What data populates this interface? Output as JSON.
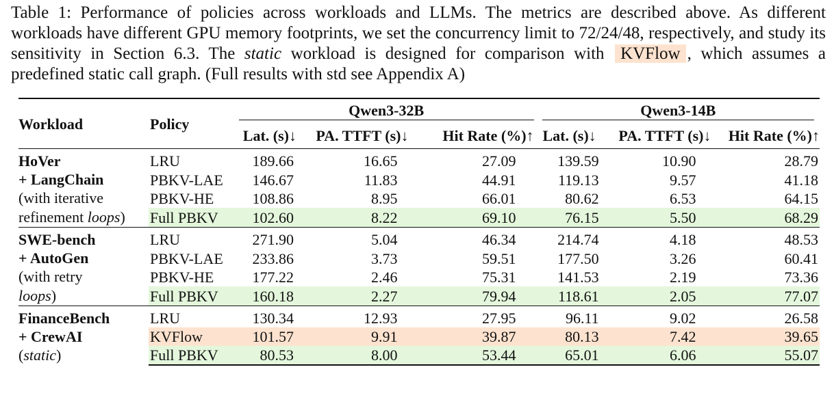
{
  "caption": {
    "part1": "Table 1: Performance of policies across workloads and LLMs. The metrics are described above. As different workloads have different GPU memory footprints, we set the concurrency limit to 72/24/48, respectively, and study its sensitivity in Section 6.3. The ",
    "italic": "static",
    "part2": " workload is designed for comparison with ",
    "kvflow": "KVFlow",
    "part3": ", which assumes a predefined static call graph. (Full results with std see Appendix A)"
  },
  "header": {
    "workload": "Workload",
    "policy": "Policy",
    "models": [
      "Qwen3-32B",
      "Qwen3-14B"
    ],
    "metrics": [
      "Lat. (s)↓",
      "PA. TTFT (s)↓",
      "Hit Rate (%)↑"
    ]
  },
  "colors": {
    "green_highlight": "#e4f7dc",
    "orange_highlight": "#fde3cf"
  },
  "groups": [
    {
      "name_lines": [
        "HoVer",
        "+ LangChain"
      ],
      "note": "(with iterative refinement ",
      "note_italic": "loops",
      "note_end": ")",
      "rows": [
        {
          "policy": "LRU",
          "values": [
            "189.66",
            "16.65",
            "27.09",
            "139.59",
            "10.90",
            "28.79"
          ],
          "highlight": "none"
        },
        {
          "policy": "PBKV-LAE",
          "values": [
            "146.67",
            "11.83",
            "44.91",
            "119.13",
            "9.57",
            "41.18"
          ],
          "highlight": "none"
        },
        {
          "policy": "PBKV-HE",
          "values": [
            "108.86",
            "8.95",
            "66.01",
            "80.62",
            "6.53",
            "64.15"
          ],
          "highlight": "none"
        },
        {
          "policy": "Full PBKV",
          "values": [
            "102.60",
            "8.22",
            "69.10",
            "76.15",
            "5.50",
            "68.29"
          ],
          "highlight": "green"
        }
      ]
    },
    {
      "name_lines": [
        "SWE-bench",
        "+ AutoGen"
      ],
      "note": "(with retry ",
      "note_italic": "loops",
      "note_end": ")",
      "rows": [
        {
          "policy": "LRU",
          "values": [
            "271.90",
            "5.04",
            "46.34",
            "214.74",
            "4.18",
            "48.53"
          ],
          "highlight": "none"
        },
        {
          "policy": "PBKV-LAE",
          "values": [
            "233.86",
            "3.73",
            "59.51",
            "177.50",
            "3.26",
            "60.41"
          ],
          "highlight": "none"
        },
        {
          "policy": "PBKV-HE",
          "values": [
            "177.22",
            "2.46",
            "75.31",
            "141.53",
            "2.19",
            "73.36"
          ],
          "highlight": "none"
        },
        {
          "policy": "Full PBKV",
          "values": [
            "160.18",
            "2.27",
            "79.94",
            "118.61",
            "2.05",
            "77.07"
          ],
          "highlight": "green"
        }
      ]
    },
    {
      "name_lines": [
        "FinanceBench",
        "+ CrewAI"
      ],
      "note": "(",
      "note_italic": "static",
      "note_end": ")",
      "rows": [
        {
          "policy": "LRU",
          "values": [
            "130.34",
            "12.93",
            "27.95",
            "96.11",
            "9.02",
            "26.58"
          ],
          "highlight": "none"
        },
        {
          "policy": "KVFlow",
          "values": [
            "101.57",
            "9.91",
            "39.87",
            "80.13",
            "7.42",
            "39.65"
          ],
          "highlight": "orange"
        },
        {
          "policy": "Full PBKV",
          "values": [
            "80.53",
            "8.00",
            "53.44",
            "65.01",
            "6.06",
            "55.07"
          ],
          "highlight": "green"
        }
      ]
    }
  ]
}
